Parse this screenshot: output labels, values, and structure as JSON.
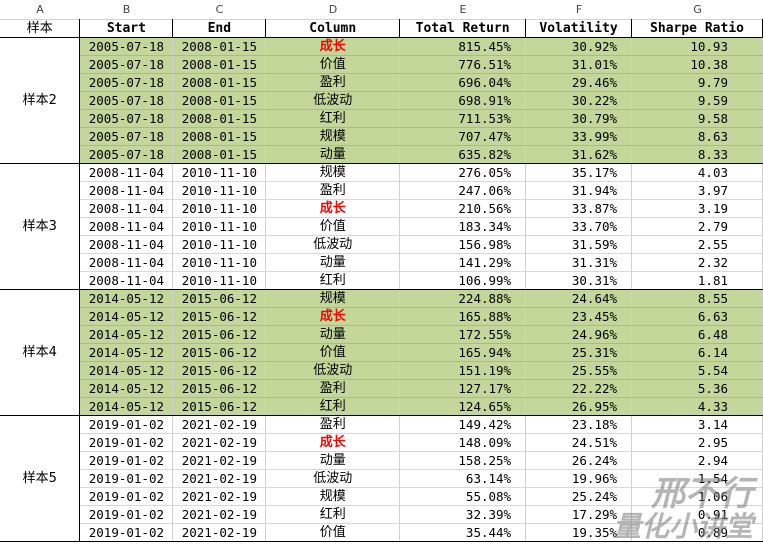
{
  "column_letters": [
    "A",
    "B",
    "C",
    "D",
    "E",
    "F",
    "G"
  ],
  "header": {
    "corner": "样本",
    "start": "Start",
    "end": "End",
    "column": "Column",
    "total_return": "Total Return",
    "volatility": "Volatility",
    "sharpe": "Sharpe Ratio"
  },
  "groups": [
    {
      "label": "样本2",
      "color": "green",
      "rows": [
        {
          "start": "2005-07-18",
          "end": "2008-01-15",
          "column": "成长",
          "highlight": true,
          "total_return": "815.45%",
          "volatility": "30.92%",
          "sharpe": "10.93"
        },
        {
          "start": "2005-07-18",
          "end": "2008-01-15",
          "column": "价值",
          "highlight": false,
          "total_return": "776.51%",
          "volatility": "31.01%",
          "sharpe": "10.38"
        },
        {
          "start": "2005-07-18",
          "end": "2008-01-15",
          "column": "盈利",
          "highlight": false,
          "total_return": "696.04%",
          "volatility": "29.46%",
          "sharpe": "9.79"
        },
        {
          "start": "2005-07-18",
          "end": "2008-01-15",
          "column": "低波动",
          "highlight": false,
          "total_return": "698.91%",
          "volatility": "30.22%",
          "sharpe": "9.59"
        },
        {
          "start": "2005-07-18",
          "end": "2008-01-15",
          "column": "红利",
          "highlight": false,
          "total_return": "711.53%",
          "volatility": "30.79%",
          "sharpe": "9.58"
        },
        {
          "start": "2005-07-18",
          "end": "2008-01-15",
          "column": "规模",
          "highlight": false,
          "total_return": "707.47%",
          "volatility": "33.99%",
          "sharpe": "8.63"
        },
        {
          "start": "2005-07-18",
          "end": "2008-01-15",
          "column": "动量",
          "highlight": false,
          "total_return": "635.82%",
          "volatility": "31.62%",
          "sharpe": "8.33"
        }
      ]
    },
    {
      "label": "样本3",
      "color": "white",
      "rows": [
        {
          "start": "2008-11-04",
          "end": "2010-11-10",
          "column": "规模",
          "highlight": false,
          "total_return": "276.05%",
          "volatility": "35.17%",
          "sharpe": "4.03"
        },
        {
          "start": "2008-11-04",
          "end": "2010-11-10",
          "column": "盈利",
          "highlight": false,
          "total_return": "247.06%",
          "volatility": "31.94%",
          "sharpe": "3.97"
        },
        {
          "start": "2008-11-04",
          "end": "2010-11-10",
          "column": "成长",
          "highlight": true,
          "total_return": "210.56%",
          "volatility": "33.87%",
          "sharpe": "3.19"
        },
        {
          "start": "2008-11-04",
          "end": "2010-11-10",
          "column": "价值",
          "highlight": false,
          "total_return": "183.34%",
          "volatility": "33.70%",
          "sharpe": "2.79"
        },
        {
          "start": "2008-11-04",
          "end": "2010-11-10",
          "column": "低波动",
          "highlight": false,
          "total_return": "156.98%",
          "volatility": "31.59%",
          "sharpe": "2.55"
        },
        {
          "start": "2008-11-04",
          "end": "2010-11-10",
          "column": "动量",
          "highlight": false,
          "total_return": "141.29%",
          "volatility": "31.31%",
          "sharpe": "2.32"
        },
        {
          "start": "2008-11-04",
          "end": "2010-11-10",
          "column": "红利",
          "highlight": false,
          "total_return": "106.99%",
          "volatility": "30.31%",
          "sharpe": "1.81"
        }
      ]
    },
    {
      "label": "样本4",
      "color": "green",
      "rows": [
        {
          "start": "2014-05-12",
          "end": "2015-06-12",
          "column": "规模",
          "highlight": false,
          "total_return": "224.88%",
          "volatility": "24.64%",
          "sharpe": "8.55"
        },
        {
          "start": "2014-05-12",
          "end": "2015-06-12",
          "column": "成长",
          "highlight": true,
          "total_return": "165.88%",
          "volatility": "23.45%",
          "sharpe": "6.63"
        },
        {
          "start": "2014-05-12",
          "end": "2015-06-12",
          "column": "动量",
          "highlight": false,
          "total_return": "172.55%",
          "volatility": "24.96%",
          "sharpe": "6.48"
        },
        {
          "start": "2014-05-12",
          "end": "2015-06-12",
          "column": "价值",
          "highlight": false,
          "total_return": "165.94%",
          "volatility": "25.31%",
          "sharpe": "6.14"
        },
        {
          "start": "2014-05-12",
          "end": "2015-06-12",
          "column": "低波动",
          "highlight": false,
          "total_return": "151.19%",
          "volatility": "25.55%",
          "sharpe": "5.54"
        },
        {
          "start": "2014-05-12",
          "end": "2015-06-12",
          "column": "盈利",
          "highlight": false,
          "total_return": "127.17%",
          "volatility": "22.22%",
          "sharpe": "5.36"
        },
        {
          "start": "2014-05-12",
          "end": "2015-06-12",
          "column": "红利",
          "highlight": false,
          "total_return": "124.65%",
          "volatility": "26.95%",
          "sharpe": "4.33"
        }
      ]
    },
    {
      "label": "样本5",
      "color": "white",
      "rows": [
        {
          "start": "2019-01-02",
          "end": "2021-02-19",
          "column": "盈利",
          "highlight": false,
          "total_return": "149.42%",
          "volatility": "23.18%",
          "sharpe": "3.14"
        },
        {
          "start": "2019-01-02",
          "end": "2021-02-19",
          "column": "成长",
          "highlight": true,
          "total_return": "148.09%",
          "volatility": "24.51%",
          "sharpe": "2.95"
        },
        {
          "start": "2019-01-02",
          "end": "2021-02-19",
          "column": "动量",
          "highlight": false,
          "total_return": "158.25%",
          "volatility": "26.24%",
          "sharpe": "2.94"
        },
        {
          "start": "2019-01-02",
          "end": "2021-02-19",
          "column": "低波动",
          "highlight": false,
          "total_return": "63.14%",
          "volatility": "19.96%",
          "sharpe": "1.54"
        },
        {
          "start": "2019-01-02",
          "end": "2021-02-19",
          "column": "规模",
          "highlight": false,
          "total_return": "55.08%",
          "volatility": "25.24%",
          "sharpe": "1.06"
        },
        {
          "start": "2019-01-02",
          "end": "2021-02-19",
          "column": "红利",
          "highlight": false,
          "total_return": "32.39%",
          "volatility": "17.29%",
          "sharpe": "0.91"
        },
        {
          "start": "2019-01-02",
          "end": "2021-02-19",
          "column": "价值",
          "highlight": false,
          "total_return": "35.44%",
          "volatility": "19.35%",
          "sharpe": "0.89"
        }
      ]
    }
  ],
  "watermark": {
    "line1": "邢不行",
    "line2": "量化小讲堂"
  },
  "colors": {
    "group_fill": "#c4d79b",
    "highlight_text": "#ff0000"
  }
}
